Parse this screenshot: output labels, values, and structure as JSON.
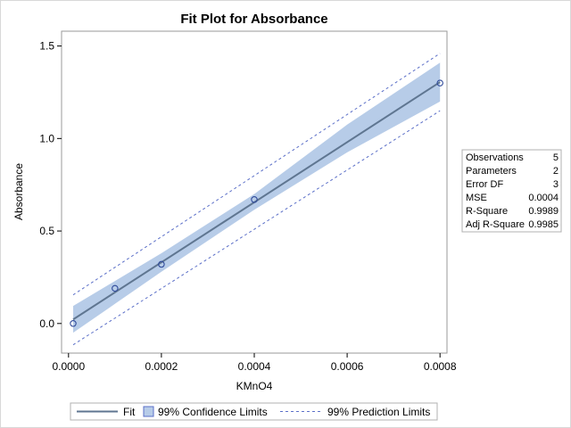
{
  "chart_data": {
    "type": "line",
    "title": "Fit Plot for Absorbance",
    "xlabel": "KMnO4",
    "ylabel": "Absorbance",
    "xlim": [
      -1.5e-05,
      0.000815
    ],
    "ylim": [
      -0.16,
      1.58
    ],
    "x_ticks": [
      0,
      0.0002,
      0.0004,
      0.0006,
      0.0008
    ],
    "x_tick_labels": [
      "0.0000",
      "0.0002",
      "0.0004",
      "0.0006",
      "0.0008"
    ],
    "y_ticks": [
      0,
      0.5,
      1.0,
      1.5
    ],
    "y_tick_labels": [
      "0.0",
      "0.5",
      "1.0",
      "1.5"
    ],
    "grid": false,
    "points": {
      "x": [
        1e-05,
        0.0001,
        0.0002,
        0.0004,
        0.0008
      ],
      "y": [
        0.0,
        0.19,
        0.32,
        0.67,
        1.3
      ]
    },
    "fit": {
      "x": [
        1e-05,
        0.0008
      ],
      "y": [
        0.022,
        1.305
      ]
    },
    "confidence_limits": {
      "x": [
        1e-05,
        0.0002,
        0.0004,
        0.0006,
        0.0008
      ],
      "lower": [
        -0.05,
        0.28,
        0.615,
        0.925,
        1.2
      ],
      "upper": [
        0.095,
        0.38,
        0.7,
        1.075,
        1.41
      ]
    },
    "prediction_limits": {
      "x": [
        1e-05,
        0.0008
      ],
      "lower": [
        -0.115,
        1.15
      ],
      "upper": [
        0.155,
        1.46
      ]
    },
    "series": [
      {
        "name": "Fit"
      },
      {
        "name": "99% Confidence Limits"
      },
      {
        "name": "99% Prediction Limits"
      }
    ],
    "legend_position": "bottom-center",
    "colors": {
      "fit_line": "#5f7691",
      "confidence_band": "#b7cce8",
      "prediction_line": "#5b6fc8",
      "points": "#2f4a9a"
    }
  },
  "stats_table": [
    {
      "label": "Observations",
      "value": "5"
    },
    {
      "label": "Parameters",
      "value": "2"
    },
    {
      "label": "Error DF",
      "value": "3"
    },
    {
      "label": "MSE",
      "value": "0.0004"
    },
    {
      "label": "R-Square",
      "value": "0.9989"
    },
    {
      "label": "Adj R-Square",
      "value": "0.9985"
    }
  ]
}
